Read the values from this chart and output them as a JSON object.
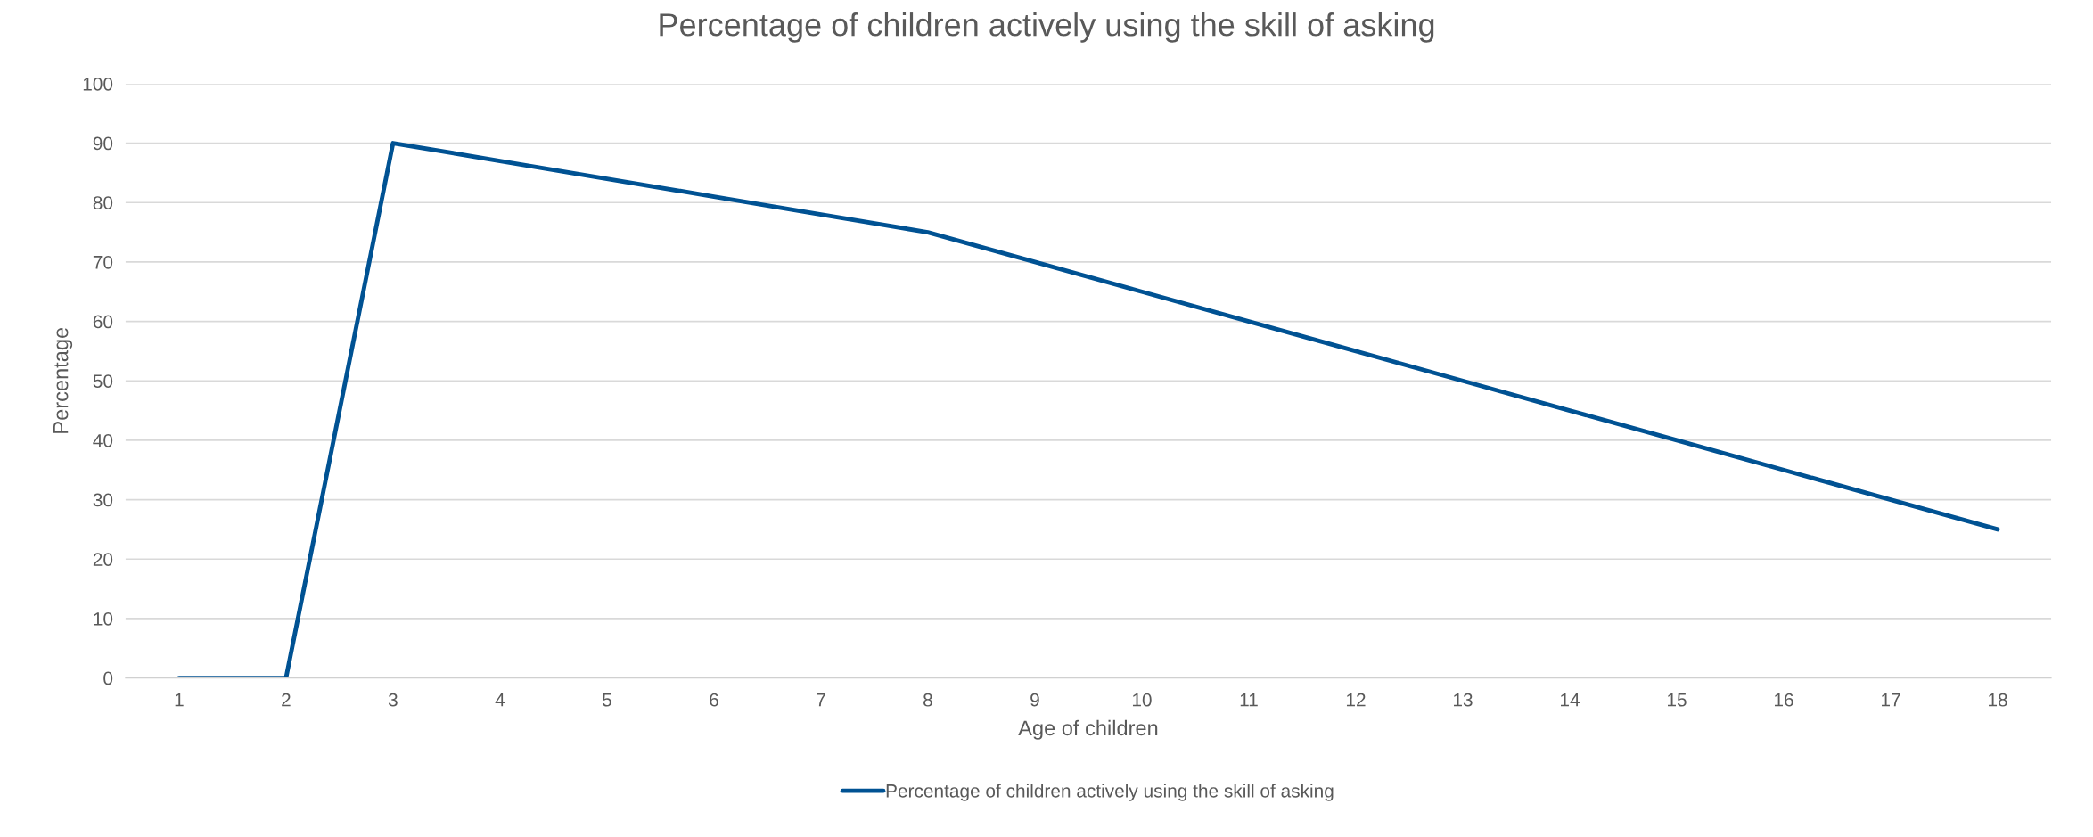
{
  "chart_data": {
    "type": "line",
    "title": "Percentage of children actively using the skill of asking",
    "xlabel": "Age of children",
    "ylabel": "Percentage",
    "categories": [
      "1",
      "2",
      "3",
      "4",
      "5",
      "6",
      "7",
      "8",
      "9",
      "10",
      "11",
      "12",
      "13",
      "14",
      "15",
      "16",
      "17",
      "18"
    ],
    "series": [
      {
        "name": "Percentage of children actively using the skill of asking",
        "color": "#005293",
        "values": [
          0,
          0,
          90,
          87,
          84,
          81,
          78,
          75,
          70,
          65,
          60,
          55,
          50,
          45,
          40,
          35,
          30,
          25
        ]
      }
    ],
    "ylim": [
      0,
      100
    ],
    "yticks": [
      0,
      10,
      20,
      30,
      40,
      50,
      60,
      70,
      80,
      90,
      100
    ],
    "grid": "y",
    "legend": "bottom",
    "marker": "none",
    "line_style": "solid"
  }
}
